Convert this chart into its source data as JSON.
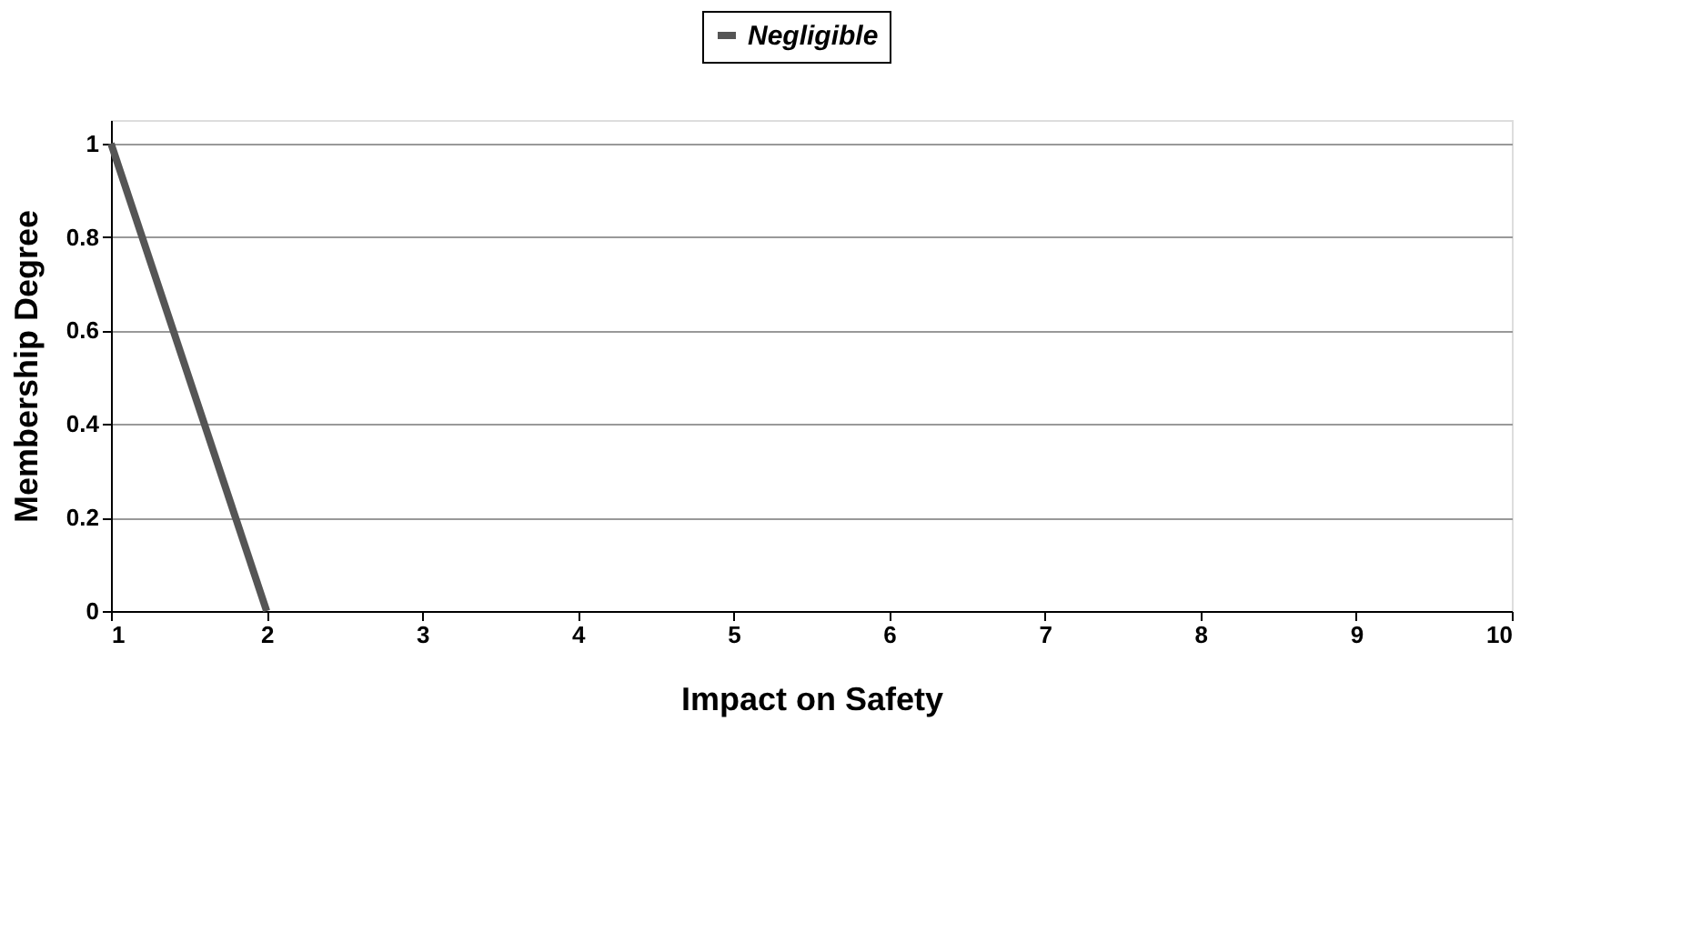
{
  "chart_data": {
    "type": "line",
    "xlabel": "Impact on Safety",
    "ylabel": "Membership Degree",
    "x": [
      1,
      2
    ],
    "series": [
      {
        "name": "Negligible",
        "color": "#555555",
        "values": [
          1,
          0
        ]
      }
    ],
    "xlim": [
      1,
      10
    ],
    "xticks": [
      1,
      2,
      3,
      4,
      5,
      6,
      7,
      8,
      9,
      10
    ],
    "ylim": [
      0,
      1.05
    ],
    "yticks": [
      0,
      0.2,
      0.4,
      0.6,
      0.8,
      1
    ],
    "grid": "y",
    "legend": "top",
    "marker": "none",
    "line_style": "solid"
  }
}
